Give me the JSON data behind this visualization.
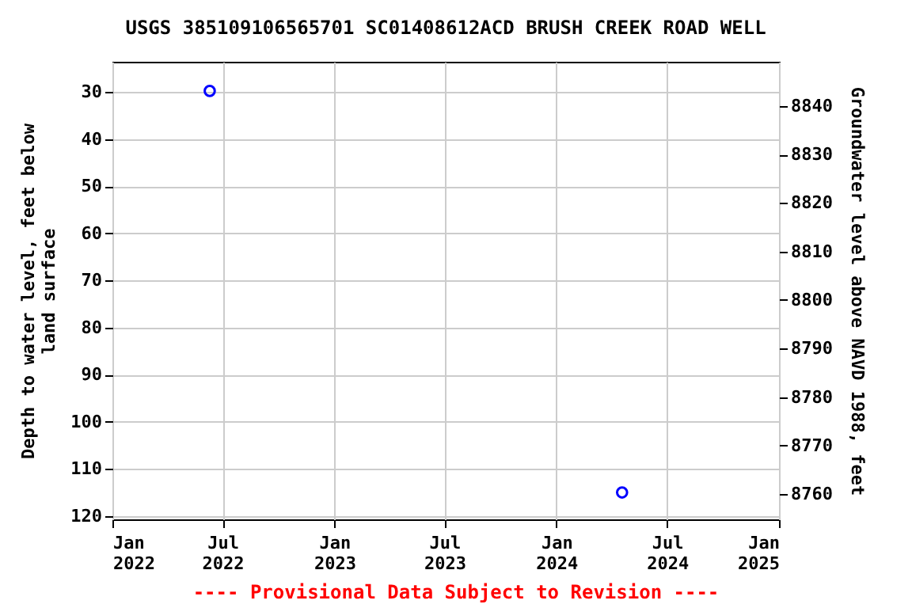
{
  "chart_data": {
    "type": "scatter",
    "title": "USGS 385109106565701 SC01408612ACD BRUSH CREEK ROAD WELL",
    "xlabel": null,
    "ylabel": "Depth to water level, feet below land surface",
    "y2label": "Groundwater level above NAVD 1988, feet",
    "x": [
      "2022-06-10",
      "2024-04-18"
    ],
    "series": [
      {
        "color": "#0000ff",
        "values": [
          29.8,
          115.0
        ]
      }
    ],
    "marker": "circle",
    "grid": true,
    "legend": false,
    "xlim": [
      "2022-01-01",
      "2025-01-01"
    ],
    "xticks": [
      {
        "value": "2022-01-01",
        "label": "Jan 2022"
      },
      {
        "value": "2022-07-01",
        "label": "Jul 2022"
      },
      {
        "value": "2023-01-01",
        "label": "Jan 2023"
      },
      {
        "value": "2023-07-01",
        "label": "Jul 2023"
      },
      {
        "value": "2024-01-01",
        "label": "Jan 2024"
      },
      {
        "value": "2024-07-01",
        "label": "Jul 2024"
      },
      {
        "value": "2025-01-01",
        "label": "Jan 2025"
      }
    ],
    "ylim": [
      120.7,
      23.6
    ],
    "yticks": [
      30,
      40,
      50,
      60,
      70,
      80,
      90,
      100,
      110,
      120
    ],
    "y2lim": [
      8754.8,
      8849.1
    ],
    "y2ticks": [
      8760,
      8770,
      8780,
      8790,
      8800,
      8810,
      8820,
      8830,
      8840
    ],
    "annotations": [
      "---- Provisional Data Subject to Revision ----"
    ]
  }
}
